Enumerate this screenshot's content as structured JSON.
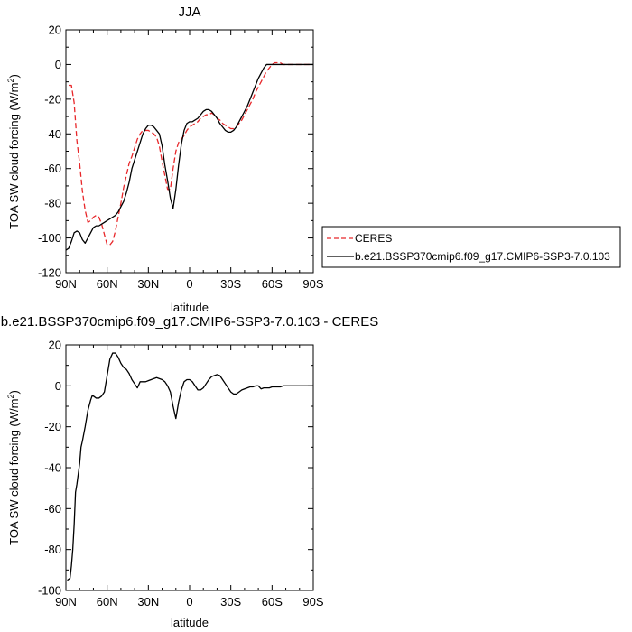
{
  "chart_data": [
    {
      "type": "line",
      "title": "JJA",
      "xlabel": "latitude",
      "ylabel": "TOA SW cloud forcing (W/m",
      "ylabel_sup": "2",
      "ylabel_end": ")",
      "xlim": [
        90,
        -90
      ],
      "ylim": [
        -120,
        20
      ],
      "xticks": [
        90,
        60,
        30,
        0,
        -30,
        -60,
        -90
      ],
      "xtick_labels": [
        "90N",
        "60N",
        "30N",
        "0",
        "30S",
        "60S",
        "90S"
      ],
      "yticks": [
        -120,
        -100,
        -80,
        -60,
        -40,
        -20,
        0,
        20
      ],
      "ytick_labels": [
        "-120",
        "-100",
        "-80",
        "-60",
        "-40",
        "-20",
        "0",
        "20"
      ],
      "legend_placement": "right, outside plot",
      "series": [
        {
          "name": "CERES",
          "color": "#e8272a",
          "style": "dashed",
          "x": [
            88,
            86,
            84,
            82,
            80,
            78,
            76,
            74,
            72,
            70,
            68,
            66,
            64,
            62,
            60,
            58,
            56,
            54,
            52,
            50,
            48,
            46,
            44,
            42,
            40,
            38,
            36,
            34,
            32,
            30,
            28,
            26,
            24,
            22,
            20,
            18,
            16,
            14,
            12,
            10,
            8,
            6,
            4,
            2,
            0,
            -2,
            -4,
            -6,
            -8,
            -10,
            -12,
            -14,
            -16,
            -18,
            -20,
            -22,
            -24,
            -26,
            -28,
            -30,
            -32,
            -34,
            -36,
            -38,
            -40,
            -42,
            -44,
            -46,
            -48,
            -50,
            -52,
            -54,
            -56,
            -58,
            -60,
            -62,
            -64,
            -66,
            -68,
            -70,
            -72,
            -74,
            -76,
            -78,
            -80,
            -82,
            -84,
            -86,
            -88
          ],
          "y": [
            -12,
            -12,
            -22,
            -44,
            -57,
            -73,
            -84,
            -91,
            -90,
            -88,
            -87,
            -88,
            -92,
            -98,
            -104,
            -104,
            -102,
            -96,
            -88,
            -80,
            -71,
            -64,
            -57,
            -53,
            -48,
            -43,
            -40,
            -38,
            -38,
            -38,
            -39,
            -40,
            -42,
            -47,
            -56,
            -64,
            -72,
            -72,
            -60,
            -50,
            -45,
            -43,
            -41,
            -38,
            -36,
            -35,
            -34,
            -33,
            -31,
            -30,
            -29,
            -29,
            -28,
            -29,
            -31,
            -32,
            -34,
            -35,
            -36,
            -37,
            -37,
            -36,
            -34,
            -32,
            -29,
            -26,
            -23,
            -20,
            -16,
            -13,
            -10,
            -7,
            -4,
            -2,
            0,
            1,
            1,
            1,
            0,
            0,
            0,
            0,
            0,
            0,
            0,
            0,
            0,
            0,
            0
          ]
        },
        {
          "name": "b.e21.BSSP370cmip6.f09_g17.CMIP6-SSP3-7.0.103",
          "color": "#000000",
          "style": "solid",
          "x": [
            90,
            88,
            86,
            84,
            82,
            80,
            78,
            76,
            74,
            72,
            70,
            68,
            66,
            64,
            62,
            60,
            58,
            56,
            54,
            52,
            50,
            48,
            46,
            44,
            42,
            40,
            38,
            36,
            34,
            32,
            30,
            28,
            26,
            24,
            22,
            20,
            18,
            16,
            14,
            12,
            10,
            8,
            6,
            4,
            2,
            0,
            -2,
            -4,
            -6,
            -8,
            -10,
            -12,
            -14,
            -16,
            -18,
            -20,
            -22,
            -24,
            -26,
            -28,
            -30,
            -32,
            -34,
            -36,
            -38,
            -40,
            -42,
            -44,
            -46,
            -48,
            -50,
            -52,
            -54,
            -56,
            -58,
            -60,
            -62,
            -64,
            -66,
            -68,
            -70,
            -72,
            -74,
            -76,
            -78,
            -80,
            -82,
            -84,
            -86,
            -88,
            -90
          ],
          "y": [
            -107,
            -106,
            -102,
            -97,
            -96,
            -97,
            -101,
            -103,
            -100,
            -97,
            -94,
            -93,
            -93,
            -92,
            -91,
            -90,
            -89,
            -88,
            -87,
            -85,
            -82,
            -79,
            -74,
            -68,
            -60,
            -55,
            -50,
            -45,
            -40,
            -37,
            -35,
            -35,
            -36,
            -38,
            -40,
            -47,
            -58,
            -67,
            -77,
            -83,
            -72,
            -58,
            -46,
            -38,
            -34,
            -33,
            -33,
            -32,
            -31,
            -29,
            -27,
            -26,
            -26,
            -27,
            -29,
            -31,
            -34,
            -36,
            -38,
            -39,
            -39,
            -38,
            -36,
            -33,
            -30,
            -27,
            -24,
            -20,
            -16,
            -12,
            -8,
            -5,
            -2,
            0,
            0,
            0,
            0,
            0,
            0,
            0,
            0,
            0,
            0,
            0,
            0,
            0,
            0,
            0,
            0,
            0,
            0
          ]
        }
      ]
    },
    {
      "type": "line",
      "title": "b.e21.BSSP370cmip6.f09_g17.CMIP6-SSP3-7.0.103 - CERES",
      "xlabel": "latitude",
      "ylabel": "TOA SW cloud forcing (W/m",
      "ylabel_sup": "2",
      "ylabel_end": ")",
      "xlim": [
        90,
        -90
      ],
      "ylim": [
        -100,
        20
      ],
      "xticks": [
        90,
        60,
        30,
        0,
        -30,
        -60,
        -90
      ],
      "xtick_labels": [
        "90N",
        "60N",
        "30N",
        "0",
        "30S",
        "60S",
        "90S"
      ],
      "yticks": [
        -100,
        -80,
        -60,
        -40,
        -20,
        0,
        20
      ],
      "ytick_labels": [
        "-100",
        "-80",
        "-60",
        "-40",
        "-20",
        "0",
        "20"
      ],
      "series": [
        {
          "color": "#000000",
          "style": "solid",
          "x": [
            89,
            87,
            86,
            85,
            84,
            83,
            82,
            80,
            79,
            78,
            76,
            74,
            72,
            71,
            70,
            68,
            66,
            64,
            62,
            60,
            58,
            56,
            54,
            52,
            50,
            48,
            46,
            44,
            42,
            40,
            38,
            36,
            34,
            32,
            30,
            28,
            26,
            24,
            22,
            20,
            18,
            16,
            14,
            12,
            10,
            8,
            6,
            4,
            2,
            0,
            -2,
            -4,
            -6,
            -8,
            -10,
            -12,
            -14,
            -16,
            -18,
            -20,
            -22,
            -24,
            -26,
            -28,
            -30,
            -32,
            -34,
            -36,
            -38,
            -40,
            -42,
            -44,
            -46,
            -48,
            -50,
            -52,
            -54,
            -56,
            -58,
            -60,
            -62,
            -64,
            -66,
            -68,
            -70,
            -72,
            -74,
            -76,
            -78,
            -80,
            -82,
            -84,
            -86,
            -88,
            -90
          ],
          "y": [
            -95,
            -94,
            -88,
            -80,
            -68,
            -52,
            -48,
            -38,
            -30,
            -27,
            -20,
            -12,
            -7,
            -5,
            -5,
            -6,
            -6,
            -5,
            -3,
            5,
            13,
            16,
            16,
            14,
            11,
            9,
            8,
            6,
            3,
            1,
            -1,
            2,
            2,
            2,
            2.5,
            3,
            3.5,
            4,
            3.5,
            3,
            2,
            0,
            -3,
            -10,
            -16,
            -8,
            -2,
            2,
            3,
            3,
            2,
            0,
            -2,
            -2,
            -1,
            1,
            3,
            4.5,
            5,
            5.5,
            5,
            3,
            1,
            -1,
            -3,
            -4,
            -4,
            -3,
            -2,
            -1.5,
            -1,
            -0.5,
            -0.5,
            0,
            0,
            -1.5,
            -1,
            -1,
            -1,
            -0.5,
            -0.5,
            -0.5,
            -0.5,
            0,
            0,
            0,
            0,
            0,
            0,
            0,
            0,
            0,
            0,
            0,
            0
          ]
        }
      ]
    }
  ]
}
